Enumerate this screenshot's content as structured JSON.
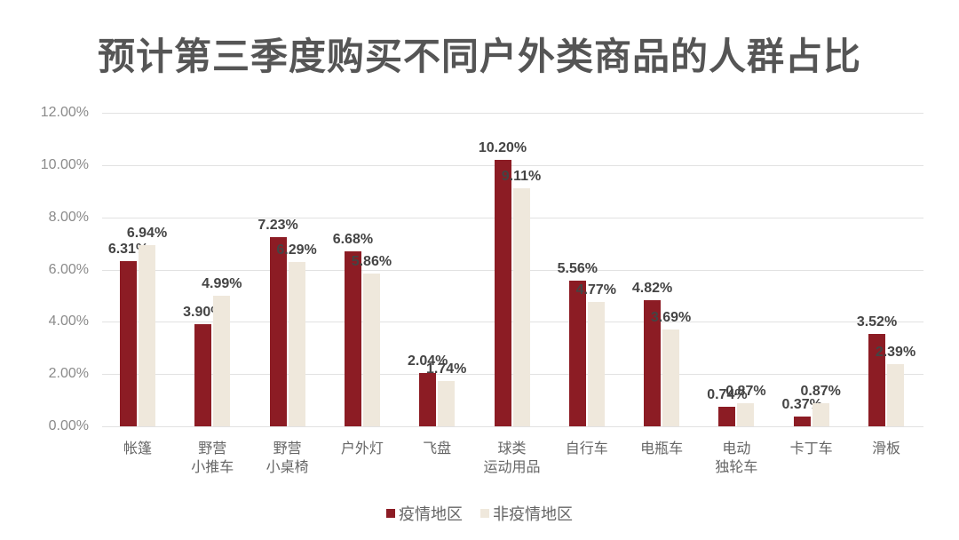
{
  "title": "预计第三季度购买不同户外类商品的人群占比",
  "chart_data": {
    "type": "bar",
    "title": "预计第三季度购买不同户外类商品的人群占比",
    "xlabel": "",
    "ylabel": "",
    "ylim": [
      0,
      12
    ],
    "yticks": [
      "0.00%",
      "2.00%",
      "4.00%",
      "6.00%",
      "8.00%",
      "10.00%",
      "12.00%"
    ],
    "grid": true,
    "legend_position": "bottom",
    "categories": [
      "帐篷",
      "野营\n小推车",
      "野营\n小桌椅",
      "户外灯",
      "飞盘",
      "球类\n运动用品",
      "自行车",
      "电瓶车",
      "电动\n独轮车",
      "卡丁车",
      "滑板"
    ],
    "series": [
      {
        "name": "疫情地区",
        "color": "#8c1c24",
        "values": [
          6.31,
          3.9,
          7.23,
          6.68,
          2.04,
          10.2,
          5.56,
          4.82,
          0.74,
          0.37,
          3.52
        ],
        "labels": [
          "6.31%",
          "3.90%",
          "7.23%",
          "6.68%",
          "2.04%",
          "10.20%",
          "5.56%",
          "4.82%",
          "0.74%",
          "0.37%",
          "3.52%"
        ]
      },
      {
        "name": "非疫情地区",
        "color": "#efe8dc",
        "values": [
          6.94,
          4.99,
          6.29,
          5.86,
          1.74,
          9.11,
          4.77,
          3.69,
          0.87,
          0.87,
          2.39
        ],
        "labels": [
          "6.94%",
          "4.99%",
          "6.29%",
          "5.86%",
          "1.74%",
          "9.11%",
          "4.77%",
          "3.69%",
          "0.87%",
          "0.87%",
          "2.39%"
        ]
      }
    ]
  },
  "legend": {
    "items": [
      {
        "label": "疫情地区",
        "color": "#8c1c24"
      },
      {
        "label": "非疫情地区",
        "color": "#efe8dc"
      }
    ]
  }
}
